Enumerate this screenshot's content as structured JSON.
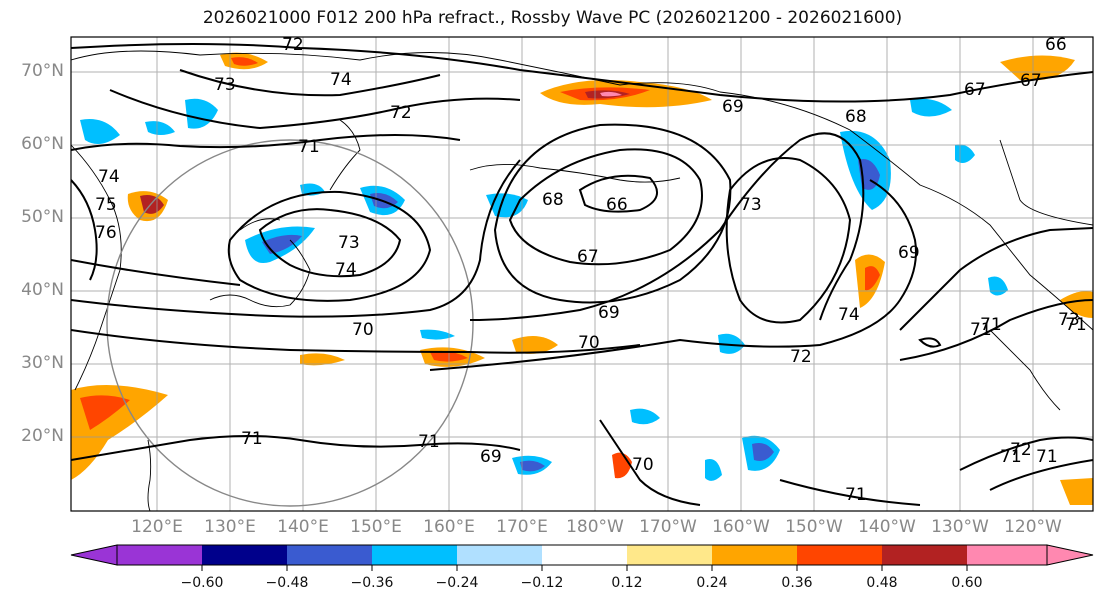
{
  "title": "2026021000 F012 200 hPa refract., Rossby Wave PC (2026021200 - 2026021600)",
  "lat_labels": [
    "70°N",
    "60°N",
    "50°N",
    "40°N",
    "30°N",
    "20°N"
  ],
  "lon_labels": [
    "120°E",
    "130°E",
    "140°E",
    "150°E",
    "160°E",
    "170°E",
    "180°W",
    "170°W",
    "160°W",
    "150°W",
    "140°W",
    "130°W",
    "120°W"
  ],
  "contour_labels": [
    "73",
    "74",
    "72",
    "71",
    "74",
    "75",
    "76",
    "73",
    "74",
    "70",
    "71",
    "68",
    "66",
    "67",
    "69",
    "70",
    "72",
    "73",
    "69",
    "71",
    "71",
    "71",
    "70",
    "71",
    "71",
    "68",
    "69",
    "67",
    "67",
    "69",
    "74",
    "72",
    "71",
    "71",
    "73",
    "72",
    "66"
  ],
  "colorbar": {
    "colors": [
      "#9a34d6",
      "#00008b",
      "#3a5bd0",
      "#00bfff",
      "#b0e0ff",
      "#ffffff",
      "#ffe88a",
      "#ffa500",
      "#ff4500",
      "#b22222",
      "#ff88b0"
    ],
    "tick_labels": [
      "−0.60",
      "−0.48",
      "−0.36",
      "−0.24",
      "−0.12",
      "0.12",
      "0.24",
      "0.36",
      "0.48",
      "0.60"
    ]
  }
}
